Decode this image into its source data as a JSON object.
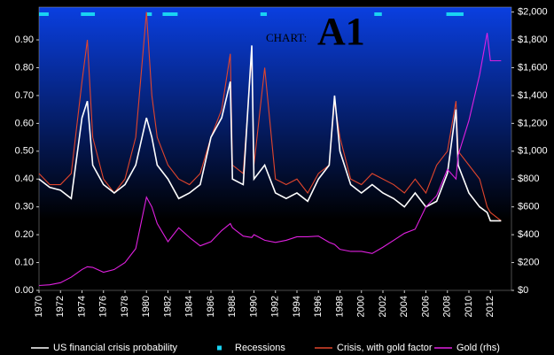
{
  "chart_data": {
    "type": "line",
    "title_prefix": "CHART:",
    "title": "A1",
    "x": [
      1970,
      1971,
      1972,
      1973,
      1974,
      1974.5,
      1975,
      1976,
      1977,
      1978,
      1979,
      1980,
      1980.5,
      1981,
      1982,
      1983,
      1984,
      1985,
      1986,
      1987,
      1987.8,
      1988,
      1989,
      1989.8,
      1990,
      1991,
      1992,
      1993,
      1994,
      1995,
      1996,
      1997,
      1997.5,
      1998,
      1999,
      2000,
      2001,
      2002,
      2003,
      2004,
      2005,
      2006,
      2007,
      2008,
      2008.8,
      2009,
      2010,
      2011,
      2011.7,
      2012,
      2013
    ],
    "series": [
      {
        "name": "US financial crisis probability",
        "color": "#ffffff",
        "values": [
          0.4,
          0.37,
          0.36,
          0.33,
          0.62,
          0.68,
          0.45,
          0.38,
          0.35,
          0.38,
          0.45,
          0.62,
          0.55,
          0.45,
          0.4,
          0.33,
          0.35,
          0.38,
          0.55,
          0.62,
          0.75,
          0.4,
          0.38,
          0.88,
          0.4,
          0.45,
          0.35,
          0.33,
          0.35,
          0.32,
          0.4,
          0.45,
          0.7,
          0.5,
          0.38,
          0.35,
          0.38,
          0.35,
          0.33,
          0.3,
          0.35,
          0.3,
          0.32,
          0.42,
          0.65,
          0.45,
          0.35,
          0.3,
          0.28,
          0.25,
          0.25
        ]
      },
      {
        "name": "Crisis, with gold factor",
        "color": "#e0452c",
        "values": [
          0.42,
          0.38,
          0.38,
          0.42,
          0.75,
          0.9,
          0.55,
          0.4,
          0.35,
          0.4,
          0.55,
          1.0,
          0.7,
          0.55,
          0.45,
          0.4,
          0.38,
          0.42,
          0.55,
          0.65,
          0.85,
          0.45,
          0.42,
          0.85,
          0.45,
          0.8,
          0.4,
          0.38,
          0.4,
          0.35,
          0.42,
          0.45,
          0.68,
          0.55,
          0.4,
          0.38,
          0.42,
          0.4,
          0.38,
          0.35,
          0.4,
          0.35,
          0.45,
          0.5,
          0.68,
          0.5,
          0.45,
          0.4,
          0.3,
          0.28,
          0.25
        ]
      },
      {
        "name": "Gold (rhs)",
        "color": "#e020e0",
        "axis": "y2",
        "values": [
          35,
          40,
          55,
          95,
          150,
          170,
          165,
          130,
          150,
          200,
          300,
          670,
          600,
          480,
          350,
          450,
          380,
          320,
          350,
          430,
          480,
          450,
          390,
          380,
          400,
          360,
          345,
          360,
          385,
          385,
          390,
          345,
          330,
          295,
          280,
          280,
          265,
          310,
          360,
          410,
          440,
          600,
          680,
          870,
          800,
          970,
          1220,
          1550,
          1850,
          1650,
          1650
        ]
      }
    ],
    "recessions": {
      "name": "Recessions",
      "color": "#19d3f3",
      "periods": [
        [
          1970,
          1970.9
        ],
        [
          1973.9,
          1975.2
        ],
        [
          1980,
          1980.5
        ],
        [
          1981.5,
          1982.9
        ],
        [
          1990.6,
          1991.2
        ],
        [
          2001.2,
          2001.9
        ],
        [
          2007.9,
          2009.5
        ]
      ]
    },
    "xlim": [
      1970,
      2013.3
    ],
    "xticks": [
      1970,
      1972,
      1974,
      1976,
      1978,
      1980,
      1982,
      1984,
      1986,
      1988,
      1990,
      1992,
      1994,
      1996,
      1998,
      2000,
      2002,
      2004,
      2006,
      2008,
      2010,
      2012
    ],
    "ylim": [
      0,
      1.0
    ],
    "yticks": [
      {
        "value": 0,
        "label": "0.00"
      },
      {
        "value": 0.1,
        "label": "0.10"
      },
      {
        "value": 0.2,
        "label": "0.20"
      },
      {
        "value": 0.3,
        "label": "0.30"
      },
      {
        "value": 0.4,
        "label": "0.40"
      },
      {
        "value": 0.5,
        "label": "0.50"
      },
      {
        "value": 0.6,
        "label": "0.60"
      },
      {
        "value": 0.7,
        "label": "0.70"
      },
      {
        "value": 0.8,
        "label": "0.80"
      },
      {
        "value": 0.9,
        "label": "0.90"
      }
    ],
    "y2lim": [
      0,
      2000
    ],
    "y2ticks": [
      {
        "value": 0,
        "label": "$0"
      },
      {
        "value": 200,
        "label": "$200"
      },
      {
        "value": 400,
        "label": "$400"
      },
      {
        "value": 600,
        "label": "$600"
      },
      {
        "value": 800,
        "label": "$800"
      },
      {
        "value": 1000,
        "label": "$1,000"
      },
      {
        "value": 1200,
        "label": "$1,200"
      },
      {
        "value": 1400,
        "label": "$1,400"
      },
      {
        "value": 1600,
        "label": "$1,600"
      },
      {
        "value": 1800,
        "label": "$1,800"
      },
      {
        "value": 2000,
        "label": "$2,000"
      }
    ]
  }
}
